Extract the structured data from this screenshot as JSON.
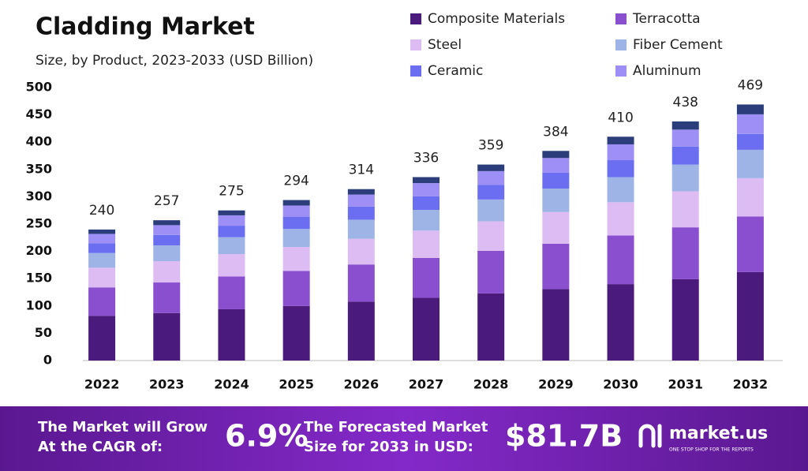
{
  "chart_data": {
    "type": "stacked_bar",
    "title": "Cladding Market",
    "subtitle": "Size, by Product, 2023-2033 (USD Billion)",
    "categories": [
      "2022",
      "2023",
      "2024",
      "2025",
      "2026",
      "2027",
      "2028",
      "2029",
      "2030",
      "2031",
      "2032"
    ],
    "series": [
      {
        "name": "Composite Materials",
        "color": "#4b1a7d",
        "values": [
          82,
          87,
          94,
          100,
          108,
          115,
          123,
          131,
          140,
          149,
          162
        ]
      },
      {
        "name": "Terracotta",
        "color": "#8a4fcf",
        "values": [
          52,
          56,
          60,
          64,
          68,
          73,
          78,
          83,
          89,
          95,
          102
        ]
      },
      {
        "name": "Steel",
        "color": "#dcbcf2",
        "values": [
          36,
          39,
          41,
          44,
          47,
          50,
          54,
          58,
          61,
          66,
          70
        ]
      },
      {
        "name": "Fiber Cement",
        "color": "#9fb4e6",
        "values": [
          27,
          29,
          31,
          33,
          35,
          38,
          40,
          43,
          46,
          49,
          52
        ]
      },
      {
        "name": "Ceramic",
        "color": "#6b6ef0",
        "values": [
          18,
          19,
          21,
          22,
          24,
          25,
          27,
          29,
          31,
          33,
          29
        ]
      },
      {
        "name": "Aluminum",
        "color": "#9d8ff5",
        "values": [
          17,
          18,
          19,
          21,
          22,
          24,
          25,
          27,
          29,
          31,
          36
        ]
      },
      {
        "color": "#2b3d7a",
        "values": [
          8,
          9,
          9,
          10,
          10,
          11,
          12,
          13,
          14,
          15,
          18
        ]
      }
    ],
    "totals": [
      240,
      257,
      275,
      294,
      314,
      336,
      359,
      384,
      410,
      438,
      469
    ],
    "ylim": [
      0,
      500
    ],
    "yticks": [
      0,
      50,
      100,
      150,
      200,
      250,
      300,
      350,
      400,
      450,
      500
    ],
    "grid": false
  },
  "footer": {
    "cagr_text": [
      "The Market will Grow",
      "At the CAGR of:"
    ],
    "cagr": "6.9%",
    "forecast_text": [
      "The Forecasted Market",
      "Size for 2033 in USD:"
    ],
    "forecast": "$81.7B",
    "brand": "market.us",
    "tagline": "ONE STOP SHOP FOR THE REPORTS"
  }
}
